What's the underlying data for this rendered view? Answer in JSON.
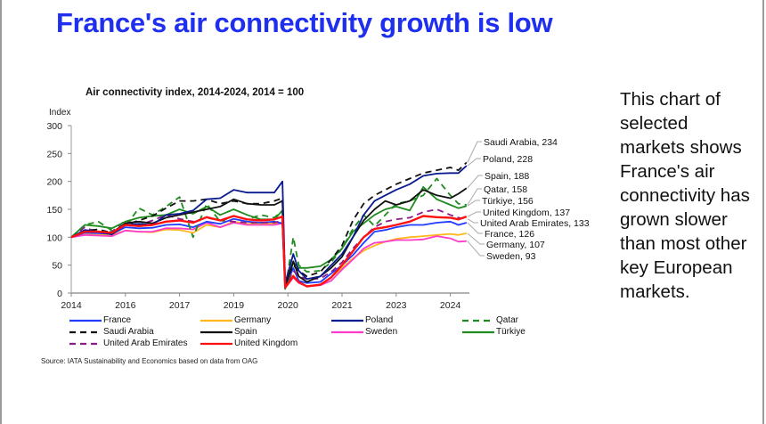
{
  "slide": {
    "title": "France's air connectivity growth is low",
    "side_text": "This chart of selected markets shows France's air connectivity has grown slower than most other key European markets.",
    "source": "Source: IATA Sustainability and Economics based on data from OAG"
  },
  "chart_data": {
    "type": "line",
    "title": "Air connectivity index, 2014-2024, 2014 = 100",
    "xlabel": "",
    "ylabel": "Index",
    "ylim": [
      0,
      300
    ],
    "yticks": [
      0,
      50,
      100,
      150,
      200,
      250,
      300
    ],
    "xlim": [
      0,
      7.35
    ],
    "xticks": [
      {
        "x": 0,
        "label": "2014"
      },
      {
        "x": 1,
        "label": "2016"
      },
      {
        "x": 2,
        "label": "2017"
      },
      {
        "x": 3,
        "label": "2019"
      },
      {
        "x": 4,
        "label": "2020"
      },
      {
        "x": 5,
        "label": "2021"
      },
      {
        "x": 6,
        "label": "2023"
      },
      {
        "x": 7,
        "label": "2024"
      }
    ],
    "grid": false,
    "legend_position": "bottom",
    "x": [
      0,
      0.25,
      0.5,
      0.75,
      1.0,
      1.25,
      1.5,
      1.75,
      2.0,
      2.25,
      2.5,
      2.75,
      3.0,
      3.25,
      3.5,
      3.75,
      3.9,
      3.95,
      4.1,
      4.2,
      4.35,
      4.6,
      4.8,
      5.0,
      5.2,
      5.4,
      5.6,
      5.8,
      6.0,
      6.25,
      6.5,
      6.75,
      7.0,
      7.15,
      7.3
    ],
    "series": [
      {
        "name": "France",
        "color": "#1f3cff",
        "dash": "solid",
        "end_label": "France, 126",
        "values": [
          100,
          108,
          107,
          106,
          118,
          116,
          117,
          122,
          123,
          118,
          128,
          124,
          133,
          128,
          126,
          128,
          125,
          10,
          45,
          22,
          18,
          20,
          35,
          50,
          68,
          90,
          110,
          113,
          118,
          122,
          122,
          126,
          128,
          122,
          126
        ]
      },
      {
        "name": "Germany",
        "color": "#ffb81c",
        "dash": "solid",
        "end_label": "Germany, 107",
        "values": [
          100,
          105,
          104,
          104,
          112,
          110,
          109,
          114,
          113,
          108,
          122,
          118,
          128,
          124,
          124,
          125,
          125,
          10,
          32,
          18,
          12,
          15,
          28,
          45,
          62,
          76,
          85,
          92,
          97,
          100,
          102,
          104,
          106,
          104,
          107
        ]
      },
      {
        "name": "Poland",
        "color": "#0a1a8f",
        "dash": "solid",
        "end_label": "Poland, 228",
        "values": [
          100,
          113,
          110,
          105,
          122,
          124,
          122,
          140,
          142,
          148,
          168,
          170,
          185,
          180,
          180,
          180,
          200,
          18,
          70,
          40,
          25,
          30,
          50,
          70,
          100,
          140,
          165,
          175,
          185,
          195,
          210,
          214,
          215,
          215,
          228
        ]
      },
      {
        "name": "Qatar",
        "color": "#1f8a1f",
        "dash": "dashed",
        "end_label": "Qatar, 158",
        "values": [
          100,
          122,
          128,
          112,
          120,
          152,
          140,
          155,
          172,
          100,
          160,
          128,
          138,
          132,
          140,
          135,
          148,
          5,
          100,
          50,
          38,
          40,
          55,
          80,
          115,
          140,
          120,
          140,
          160,
          165,
          175,
          205,
          175,
          160,
          158
        ]
      },
      {
        "name": "Saudi Arabia",
        "color": "#111111",
        "dash": "dashed",
        "end_label": "Saudi Arabia, 234",
        "values": [
          100,
          112,
          114,
          108,
          122,
          130,
          138,
          152,
          165,
          165,
          168,
          160,
          165,
          160,
          160,
          165,
          170,
          15,
          50,
          40,
          30,
          38,
          60,
          85,
          130,
          160,
          175,
          185,
          195,
          205,
          215,
          220,
          225,
          220,
          234
        ]
      },
      {
        "name": "Spain",
        "color": "#111111",
        "dash": "solid",
        "end_label": "Spain, 188",
        "values": [
          100,
          110,
          110,
          108,
          125,
          128,
          125,
          135,
          140,
          145,
          150,
          155,
          168,
          160,
          158,
          158,
          165,
          12,
          57,
          30,
          20,
          30,
          45,
          65,
          100,
          130,
          150,
          165,
          158,
          165,
          185,
          175,
          170,
          178,
          188
        ]
      },
      {
        "name": "Sweden",
        "color": "#ff3cc8",
        "dash": "solid",
        "end_label": "Sweden, 93",
        "values": [
          100,
          104,
          103,
          102,
          112,
          110,
          110,
          116,
          116,
          114,
          126,
          118,
          126,
          122,
          122,
          122,
          125,
          9,
          28,
          18,
          12,
          14,
          22,
          42,
          60,
          80,
          90,
          92,
          95,
          95,
          96,
          102,
          98,
          92,
          93
        ]
      },
      {
        "name": "Türkiye",
        "color": "#1f8a1f",
        "dash": "solid",
        "end_label": "Türkiye, 156",
        "values": [
          100,
          122,
          120,
          116,
          128,
          135,
          138,
          140,
          150,
          142,
          155,
          140,
          150,
          140,
          132,
          132,
          148,
          8,
          55,
          45,
          45,
          48,
          60,
          80,
          110,
          125,
          140,
          150,
          155,
          148,
          190,
          168,
          158,
          152,
          156
        ]
      },
      {
        "name": "United Arab Emirates",
        "color": "#8b1a8b",
        "dash": "dashed",
        "end_label": "United Arab Emirates, 133",
        "values": [
          100,
          118,
          108,
          110,
          130,
          122,
          130,
          140,
          133,
          128,
          135,
          130,
          128,
          126,
          126,
          126,
          130,
          10,
          40,
          30,
          25,
          26,
          38,
          55,
          80,
          100,
          118,
          128,
          132,
          135,
          145,
          150,
          140,
          135,
          133
        ]
      },
      {
        "name": "United Kingdom",
        "color": "#ff1010",
        "dash": "solid",
        "end_label": "United Kingdom, 137",
        "values": [
          100,
          110,
          110,
          108,
          122,
          120,
          122,
          128,
          130,
          126,
          136,
          130,
          138,
          132,
          130,
          132,
          137,
          10,
          30,
          20,
          12,
          15,
          28,
          50,
          75,
          100,
          115,
          118,
          122,
          128,
          138,
          136,
          135,
          132,
          137
        ]
      }
    ]
  }
}
